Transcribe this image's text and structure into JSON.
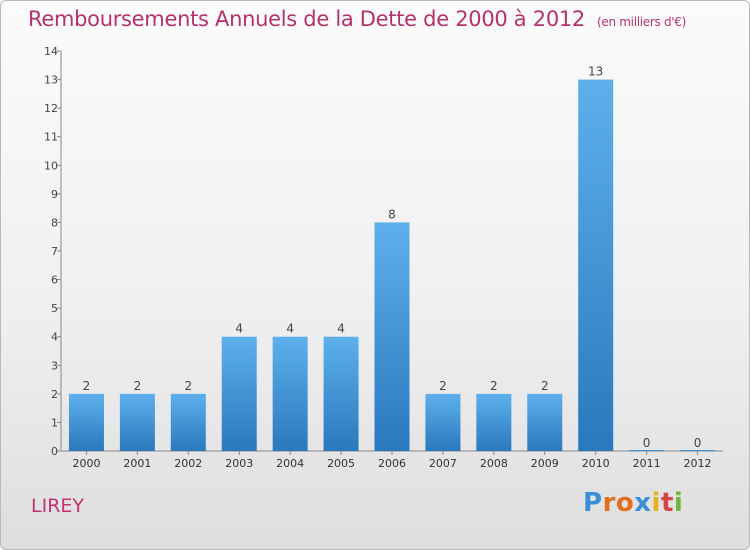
{
  "chart_data": {
    "type": "bar",
    "title": "Remboursements Annuels de la Dette de 2000 à 2012",
    "subtitle": "(en milliers d'€)",
    "categories": [
      "2000",
      "2001",
      "2002",
      "2003",
      "2004",
      "2005",
      "2006",
      "2007",
      "2008",
      "2009",
      "2010",
      "2011",
      "2012"
    ],
    "values": [
      2,
      2,
      2,
      4,
      4,
      4,
      8,
      2,
      2,
      2,
      13,
      0,
      0
    ],
    "ylim": [
      0,
      14
    ],
    "yticks": [
      0,
      1,
      2,
      3,
      4,
      5,
      6,
      7,
      8,
      9,
      10,
      11,
      12,
      13,
      14
    ],
    "xlabel": "",
    "ylabel": "",
    "grid": false,
    "bar_color": "#3f95d8"
  },
  "footer": {
    "town": "LIREY",
    "logo": [
      "P",
      "r",
      "o",
      "x",
      "i",
      "t",
      "i"
    ],
    "logo_colors": [
      "#3a8ed8",
      "#e26f1f",
      "#e26f1f",
      "#3a8ed8",
      "#e2b21f",
      "#d64545",
      "#6fb63a"
    ]
  }
}
